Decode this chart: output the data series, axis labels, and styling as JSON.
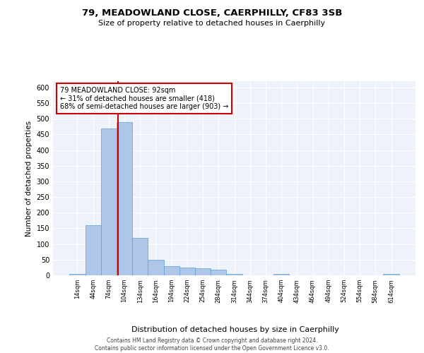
{
  "title1": "79, MEADOWLAND CLOSE, CAERPHILLY, CF83 3SB",
  "title2": "Size of property relative to detached houses in Caerphilly",
  "xlabel": "Distribution of detached houses by size in Caerphilly",
  "ylabel": "Number of detached properties",
  "footer1": "Contains HM Land Registry data © Crown copyright and database right 2024.",
  "footer2": "Contains public sector information licensed under the Open Government Licence v3.0.",
  "bin_labels": [
    "14sqm",
    "44sqm",
    "74sqm",
    "104sqm",
    "134sqm",
    "164sqm",
    "194sqm",
    "224sqm",
    "254sqm",
    "284sqm",
    "314sqm",
    "344sqm",
    "374sqm",
    "404sqm",
    "434sqm",
    "464sqm",
    "494sqm",
    "524sqm",
    "554sqm",
    "584sqm",
    "614sqm"
  ],
  "bar_values": [
    5,
    160,
    470,
    490,
    120,
    50,
    30,
    25,
    22,
    18,
    5,
    0,
    0,
    5,
    0,
    0,
    0,
    0,
    0,
    0,
    5
  ],
  "bar_color": "#aec6e8",
  "bar_edgecolor": "#5a9fd4",
  "property_label": "79 MEADOWLAND CLOSE: 92sqm",
  "annotation_line1": "← 31% of detached houses are smaller (418)",
  "annotation_line2": "68% of semi-detached houses are larger (903) →",
  "vline_color": "#cc0000",
  "annotation_box_color": "#cc0000",
  "ylim": [
    0,
    620
  ],
  "yticks": [
    0,
    50,
    100,
    150,
    200,
    250,
    300,
    350,
    400,
    450,
    500,
    550,
    600
  ],
  "background_color": "#eef2fb",
  "grid_color": "#ffffff"
}
